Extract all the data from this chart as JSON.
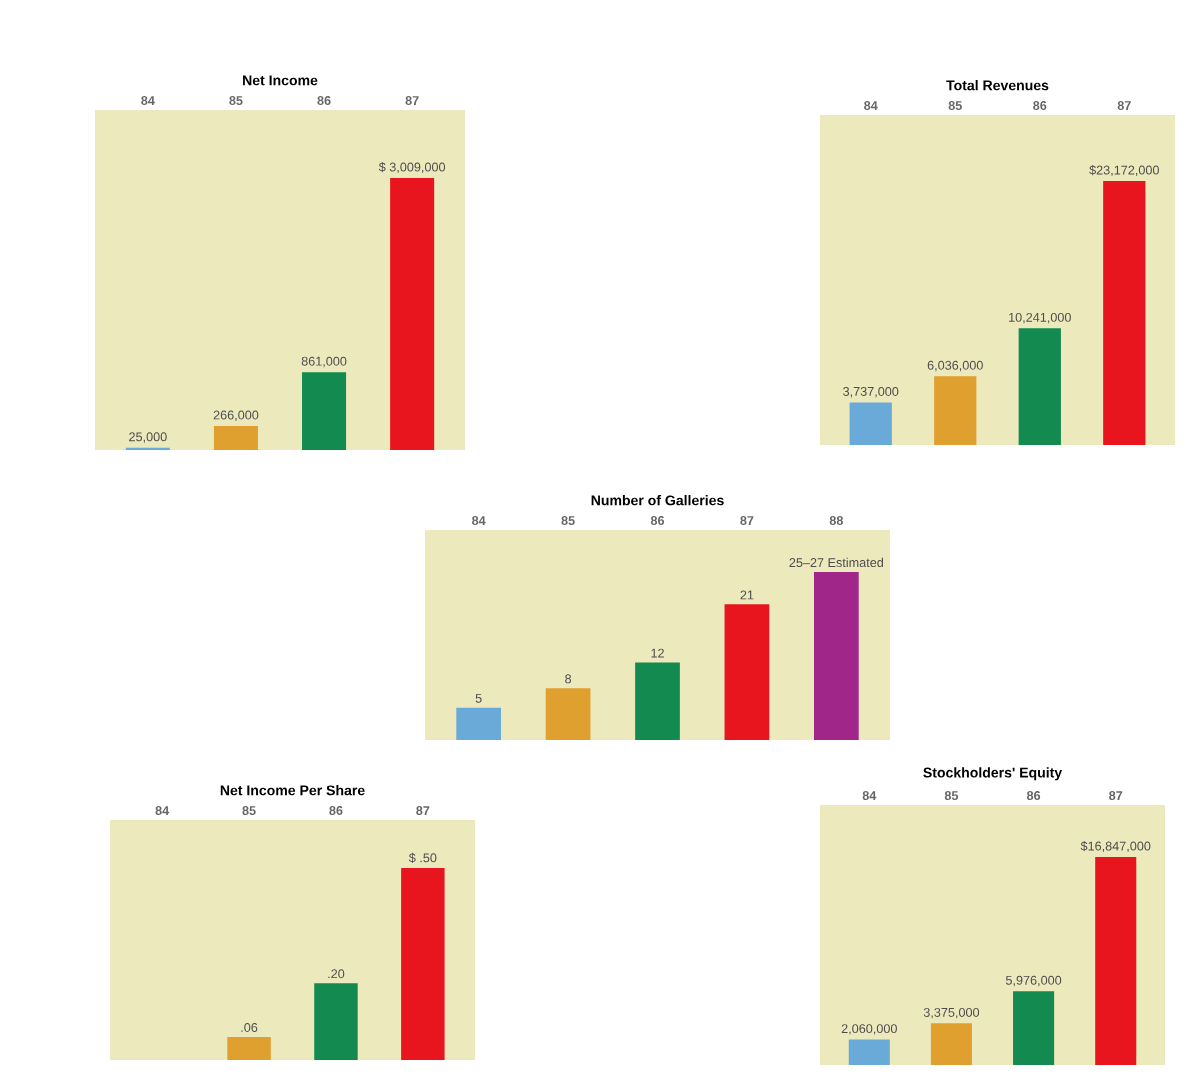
{
  "chart_data": [
    {
      "type": "bar",
      "title": "Net Income",
      "categories": [
        "84",
        "85",
        "86",
        "87"
      ],
      "values": [
        25000,
        266000,
        861000,
        3009000
      ],
      "colors": [
        "#6aaad8",
        "#e0a030",
        "#128a50",
        "#e8141e"
      ],
      "value_labels": [
        "25,000",
        "266,000",
        "861,000",
        "$ 3,009,000"
      ]
    },
    {
      "type": "bar",
      "title": "Total Revenues",
      "categories": [
        "84",
        "85",
        "86",
        "87"
      ],
      "values": [
        3737000,
        6036000,
        10241000,
        23172000
      ],
      "colors": [
        "#6aaad8",
        "#e0a030",
        "#128a50",
        "#e8141e"
      ],
      "value_labels": [
        "3,737,000",
        "6,036,000",
        "10,241,000",
        "$23,172,000"
      ]
    },
    {
      "type": "bar",
      "title": "Number of Galleries",
      "categories": [
        "84",
        "85",
        "86",
        "87",
        "88"
      ],
      "values": [
        5,
        8,
        12,
        21,
        26
      ],
      "colors": [
        "#6aaad8",
        "#e0a030",
        "#128a50",
        "#e8141e",
        "#a0268a"
      ],
      "value_labels": [
        "5",
        "8",
        "12",
        "21",
        "25–27 Estimated"
      ]
    },
    {
      "type": "bar",
      "title": "Net Income Per Share",
      "categories": [
        "84",
        "85",
        "86",
        "87"
      ],
      "values": [
        null,
        0.06,
        0.2,
        0.5
      ],
      "colors": [
        "#6aaad8",
        "#e0a030",
        "#128a50",
        "#e8141e"
      ],
      "value_labels": [
        null,
        ".06",
        ".20",
        "$ .50"
      ]
    },
    {
      "type": "bar",
      "title": "Stockholders' Equity",
      "categories": [
        "84",
        "85",
        "86",
        "87"
      ],
      "values": [
        2060000,
        3375000,
        5976000,
        16847000
      ],
      "colors": [
        "#6aaad8",
        "#e0a030",
        "#128a50",
        "#e8141e"
      ],
      "value_labels": [
        "2,060,000",
        "3,375,000",
        "5,976,000",
        "$16,847,000"
      ]
    }
  ]
}
